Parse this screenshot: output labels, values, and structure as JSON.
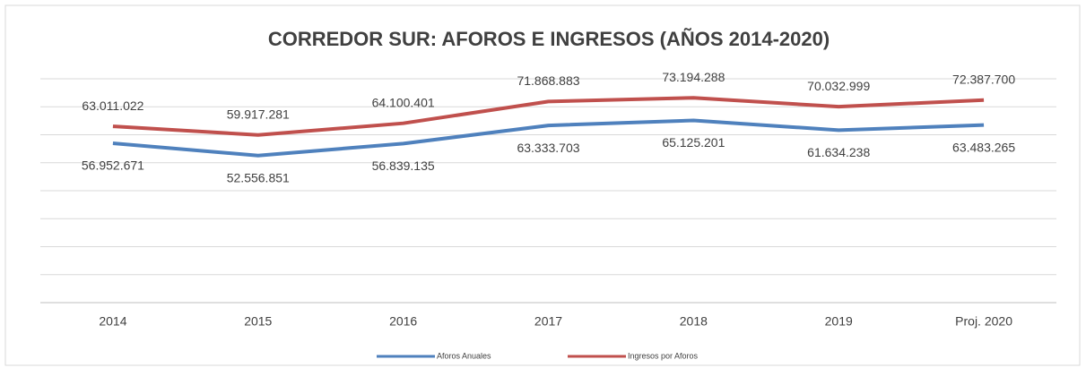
{
  "chart_data": {
    "type": "line",
    "title": "CORREDOR SUR:  AFOROS E INGRESOS (AÑOS 2014-2020)",
    "categories": [
      "2014",
      "2015",
      "2016",
      "2017",
      "2018",
      "2019",
      "Proj. 2020"
    ],
    "series": [
      {
        "name": "Aforos Anuales",
        "color": "#4f81bd",
        "values": [
          56952671,
          52556851,
          56839135,
          63333703,
          65125201,
          61634238,
          63483265
        ],
        "value_labels": [
          "56.952.671",
          "52.556.851",
          "56.839.135",
          "63.333.703",
          "65.125.201",
          "61.634.238",
          "63.483.265"
        ]
      },
      {
        "name": "Ingresos por Aforos",
        "color": "#c0504d",
        "values": [
          63011022,
          59917281,
          64100401,
          71868883,
          73194288,
          70032999,
          72387700
        ],
        "value_labels": [
          "63.011.022",
          "59.917.281",
          "64.100.401",
          "71.868.883",
          "73.194.288",
          "70.032.999",
          "72.387.700"
        ]
      }
    ],
    "ylim": [
      0,
      80000000
    ],
    "yticks": [
      0,
      10000000,
      20000000,
      30000000,
      40000000,
      50000000,
      60000000,
      70000000,
      80000000
    ],
    "grid": true,
    "legend": "bottom"
  }
}
